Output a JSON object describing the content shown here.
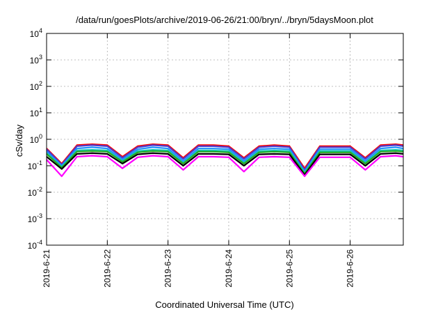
{
  "chart_data": {
    "type": "line",
    "title": "/data/run/goesPlots/archive/2019-06-26/21:00/bryn/../bryn/5daysMoon.plot",
    "xlabel": "Coordinated Universal Time (UTC)",
    "ylabel": "cSv/day",
    "yscale": "log",
    "ylim": [
      0.0001,
      10000
    ],
    "yticks": [
      {
        "value": 0.0001,
        "base": "10",
        "exp": "-4"
      },
      {
        "value": 0.001,
        "base": "10",
        "exp": "-3"
      },
      {
        "value": 0.01,
        "base": "10",
        "exp": "-2"
      },
      {
        "value": 0.1,
        "base": "10",
        "exp": "-1"
      },
      {
        "value": 1,
        "base": "10",
        "exp": "0"
      },
      {
        "value": 10,
        "base": "10",
        "exp": "1"
      },
      {
        "value": 100,
        "base": "10",
        "exp": "2"
      },
      {
        "value": 1000,
        "base": "10",
        "exp": "3"
      },
      {
        "value": 10000,
        "base": "10",
        "exp": "4"
      }
    ],
    "xlim": [
      "2019-06-21",
      "2019-06-26 21:00"
    ],
    "xticks": [
      "2019-6-21",
      "2019-6-22",
      "2019-6-23",
      "2019-6-24",
      "2019-6-25",
      "2019-6-26"
    ],
    "grid": true,
    "x": [
      "2019-06-21 00:00",
      "2019-06-21 06:00",
      "2019-06-21 12:00",
      "2019-06-21 18:00",
      "2019-06-22 00:00",
      "2019-06-22 06:00",
      "2019-06-22 12:00",
      "2019-06-22 18:00",
      "2019-06-23 00:00",
      "2019-06-23 06:00",
      "2019-06-23 12:00",
      "2019-06-23 18:00",
      "2019-06-24 00:00",
      "2019-06-24 06:00",
      "2019-06-24 12:00",
      "2019-06-24 18:00",
      "2019-06-25 00:00",
      "2019-06-25 06:00",
      "2019-06-25 12:00",
      "2019-06-25 18:00",
      "2019-06-26 00:00",
      "2019-06-26 06:00",
      "2019-06-26 12:00",
      "2019-06-26 18:00",
      "2019-06-26 21:00"
    ],
    "series": [
      {
        "color": "#ff0000",
        "values": [
          0.45,
          0.12,
          0.6,
          0.65,
          0.6,
          0.22,
          0.55,
          0.65,
          0.6,
          0.2,
          0.6,
          0.6,
          0.55,
          0.2,
          0.55,
          0.6,
          0.55,
          0.08,
          0.55,
          0.55,
          0.55,
          0.2,
          0.6,
          0.65,
          0.6
        ]
      },
      {
        "color": "#4a3ccf",
        "values": [
          0.42,
          0.11,
          0.55,
          0.6,
          0.55,
          0.2,
          0.5,
          0.6,
          0.55,
          0.18,
          0.55,
          0.55,
          0.5,
          0.18,
          0.5,
          0.55,
          0.5,
          0.07,
          0.5,
          0.5,
          0.5,
          0.18,
          0.55,
          0.6,
          0.55
        ]
      },
      {
        "color": "#1e90ff",
        "values": [
          0.35,
          0.1,
          0.45,
          0.5,
          0.45,
          0.17,
          0.42,
          0.5,
          0.45,
          0.15,
          0.45,
          0.45,
          0.42,
          0.15,
          0.42,
          0.45,
          0.42,
          0.06,
          0.42,
          0.42,
          0.42,
          0.15,
          0.45,
          0.5,
          0.45
        ]
      },
      {
        "color": "#17c9b0",
        "values": [
          0.3,
          0.09,
          0.38,
          0.4,
          0.38,
          0.15,
          0.36,
          0.4,
          0.38,
          0.13,
          0.38,
          0.38,
          0.36,
          0.13,
          0.36,
          0.38,
          0.36,
          0.055,
          0.36,
          0.36,
          0.36,
          0.13,
          0.38,
          0.4,
          0.38
        ]
      },
      {
        "color": "#22aa22",
        "values": [
          0.28,
          0.085,
          0.34,
          0.36,
          0.34,
          0.14,
          0.32,
          0.36,
          0.34,
          0.12,
          0.34,
          0.34,
          0.32,
          0.12,
          0.32,
          0.34,
          0.32,
          0.05,
          0.32,
          0.32,
          0.32,
          0.12,
          0.34,
          0.36,
          0.34
        ]
      },
      {
        "color": "#000000",
        "values": [
          0.22,
          0.075,
          0.28,
          0.3,
          0.28,
          0.12,
          0.27,
          0.3,
          0.28,
          0.1,
          0.28,
          0.28,
          0.27,
          0.1,
          0.27,
          0.28,
          0.27,
          0.045,
          0.27,
          0.27,
          0.27,
          0.1,
          0.28,
          0.3,
          0.28
        ]
      },
      {
        "color": "#ff00ff",
        "values": [
          0.17,
          0.04,
          0.22,
          0.24,
          0.22,
          0.08,
          0.21,
          0.24,
          0.22,
          0.07,
          0.22,
          0.22,
          0.21,
          0.06,
          0.21,
          0.22,
          0.21,
          0.04,
          0.21,
          0.21,
          0.21,
          0.07,
          0.22,
          0.24,
          0.22
        ]
      }
    ]
  }
}
